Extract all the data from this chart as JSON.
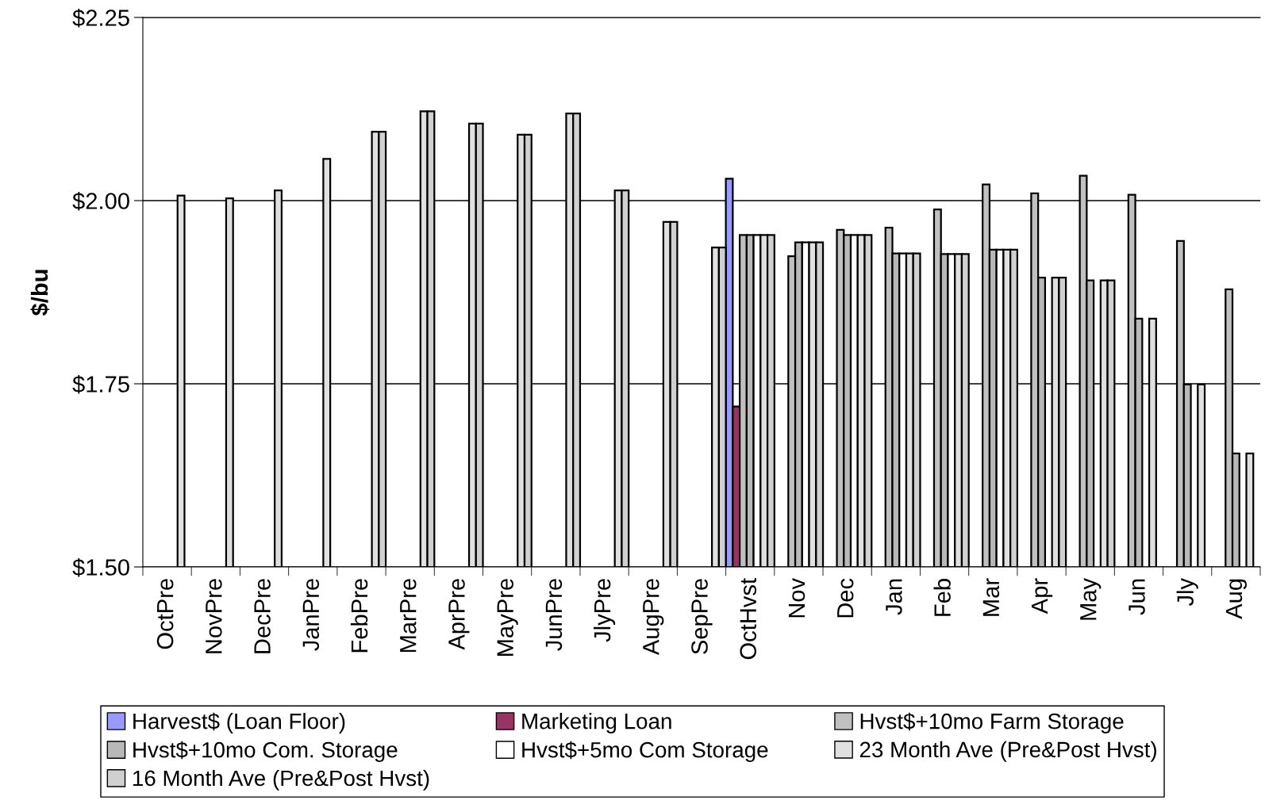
{
  "chart_data": {
    "type": "bar",
    "ylabel": "$/bu",
    "categories": [
      "OctPre",
      "NovPre",
      "DecPre",
      "JanPre",
      "FebPre",
      "MarPre",
      "AprPre",
      "MayPre",
      "JunPre",
      "JlyPre",
      "AugPre",
      "SepPre",
      "OctHvst",
      "Nov",
      "Dec",
      "Jan",
      "Feb",
      "Mar",
      "Apr",
      "May",
      "Jun",
      "Jly",
      "Aug"
    ],
    "series": [
      {
        "name": "Harvest$ (Loan Floor)",
        "color": "#9999ff",
        "values": [
          null,
          null,
          null,
          null,
          null,
          null,
          null,
          null,
          null,
          null,
          null,
          null,
          2.03,
          null,
          null,
          null,
          null,
          null,
          null,
          null,
          null,
          null,
          null
        ]
      },
      {
        "name": "Marketing Loan",
        "color": "#993366",
        "values": [
          null,
          null,
          null,
          null,
          null,
          null,
          null,
          null,
          null,
          null,
          null,
          null,
          1.719,
          null,
          null,
          null,
          null,
          null,
          null,
          null,
          null,
          null,
          null
        ]
      },
      {
        "name": "Hvst$+10mo Farm Storage",
        "color": "#c0c0c0",
        "values": [
          null,
          null,
          null,
          null,
          null,
          null,
          null,
          null,
          null,
          null,
          null,
          null,
          1.953,
          1.924,
          1.96,
          1.963,
          1.988,
          2.022,
          2.01,
          2.034,
          2.008,
          1.945,
          1.879
        ]
      },
      {
        "name": "Hvst$+10mo Com. Storage",
        "color": "#b8b8b8",
        "values": [
          null,
          null,
          null,
          null,
          null,
          null,
          null,
          null,
          null,
          null,
          null,
          null,
          1.953,
          1.943,
          1.953,
          1.928,
          1.927,
          1.933,
          1.895,
          1.891,
          1.839,
          1.749,
          1.655
        ]
      },
      {
        "name": "Hvst$+5mo Com Storage",
        "color": "#ffffff",
        "values": [
          null,
          null,
          null,
          null,
          null,
          null,
          null,
          null,
          null,
          null,
          null,
          null,
          1.953,
          1.943,
          1.953,
          1.928,
          1.927,
          1.933,
          null,
          null,
          null,
          null,
          null
        ]
      },
      {
        "name": "23 Month Ave (Pre&Post Hvst)",
        "color": "#e0e0e0",
        "values": [
          2.007,
          2.003,
          2.014,
          2.057,
          2.094,
          2.122,
          2.105,
          2.09,
          2.119,
          2.014,
          1.971,
          1.936,
          1.953,
          1.943,
          1.953,
          1.928,
          1.927,
          1.933,
          1.895,
          1.891,
          1.839,
          1.749,
          1.655
        ]
      },
      {
        "name": "16 Month Ave (Pre&Post Hvst)",
        "color": "#d0d0d0",
        "values": [
          null,
          null,
          null,
          null,
          2.094,
          2.122,
          2.105,
          2.09,
          2.119,
          2.014,
          1.971,
          1.936,
          1.953,
          1.943,
          1.953,
          1.928,
          1.927,
          1.933,
          1.895,
          1.891,
          null,
          null,
          null
        ]
      }
    ],
    "ylim": [
      1.5,
      2.25
    ],
    "yticks": [
      {
        "value": 1.5,
        "label": "$1.50"
      },
      {
        "value": 1.75,
        "label": "$1.75"
      },
      {
        "value": 2.0,
        "label": "$2.00"
      },
      {
        "value": 2.25,
        "label": "$2.25"
      }
    ],
    "grid": "y",
    "legend": "bottom"
  }
}
